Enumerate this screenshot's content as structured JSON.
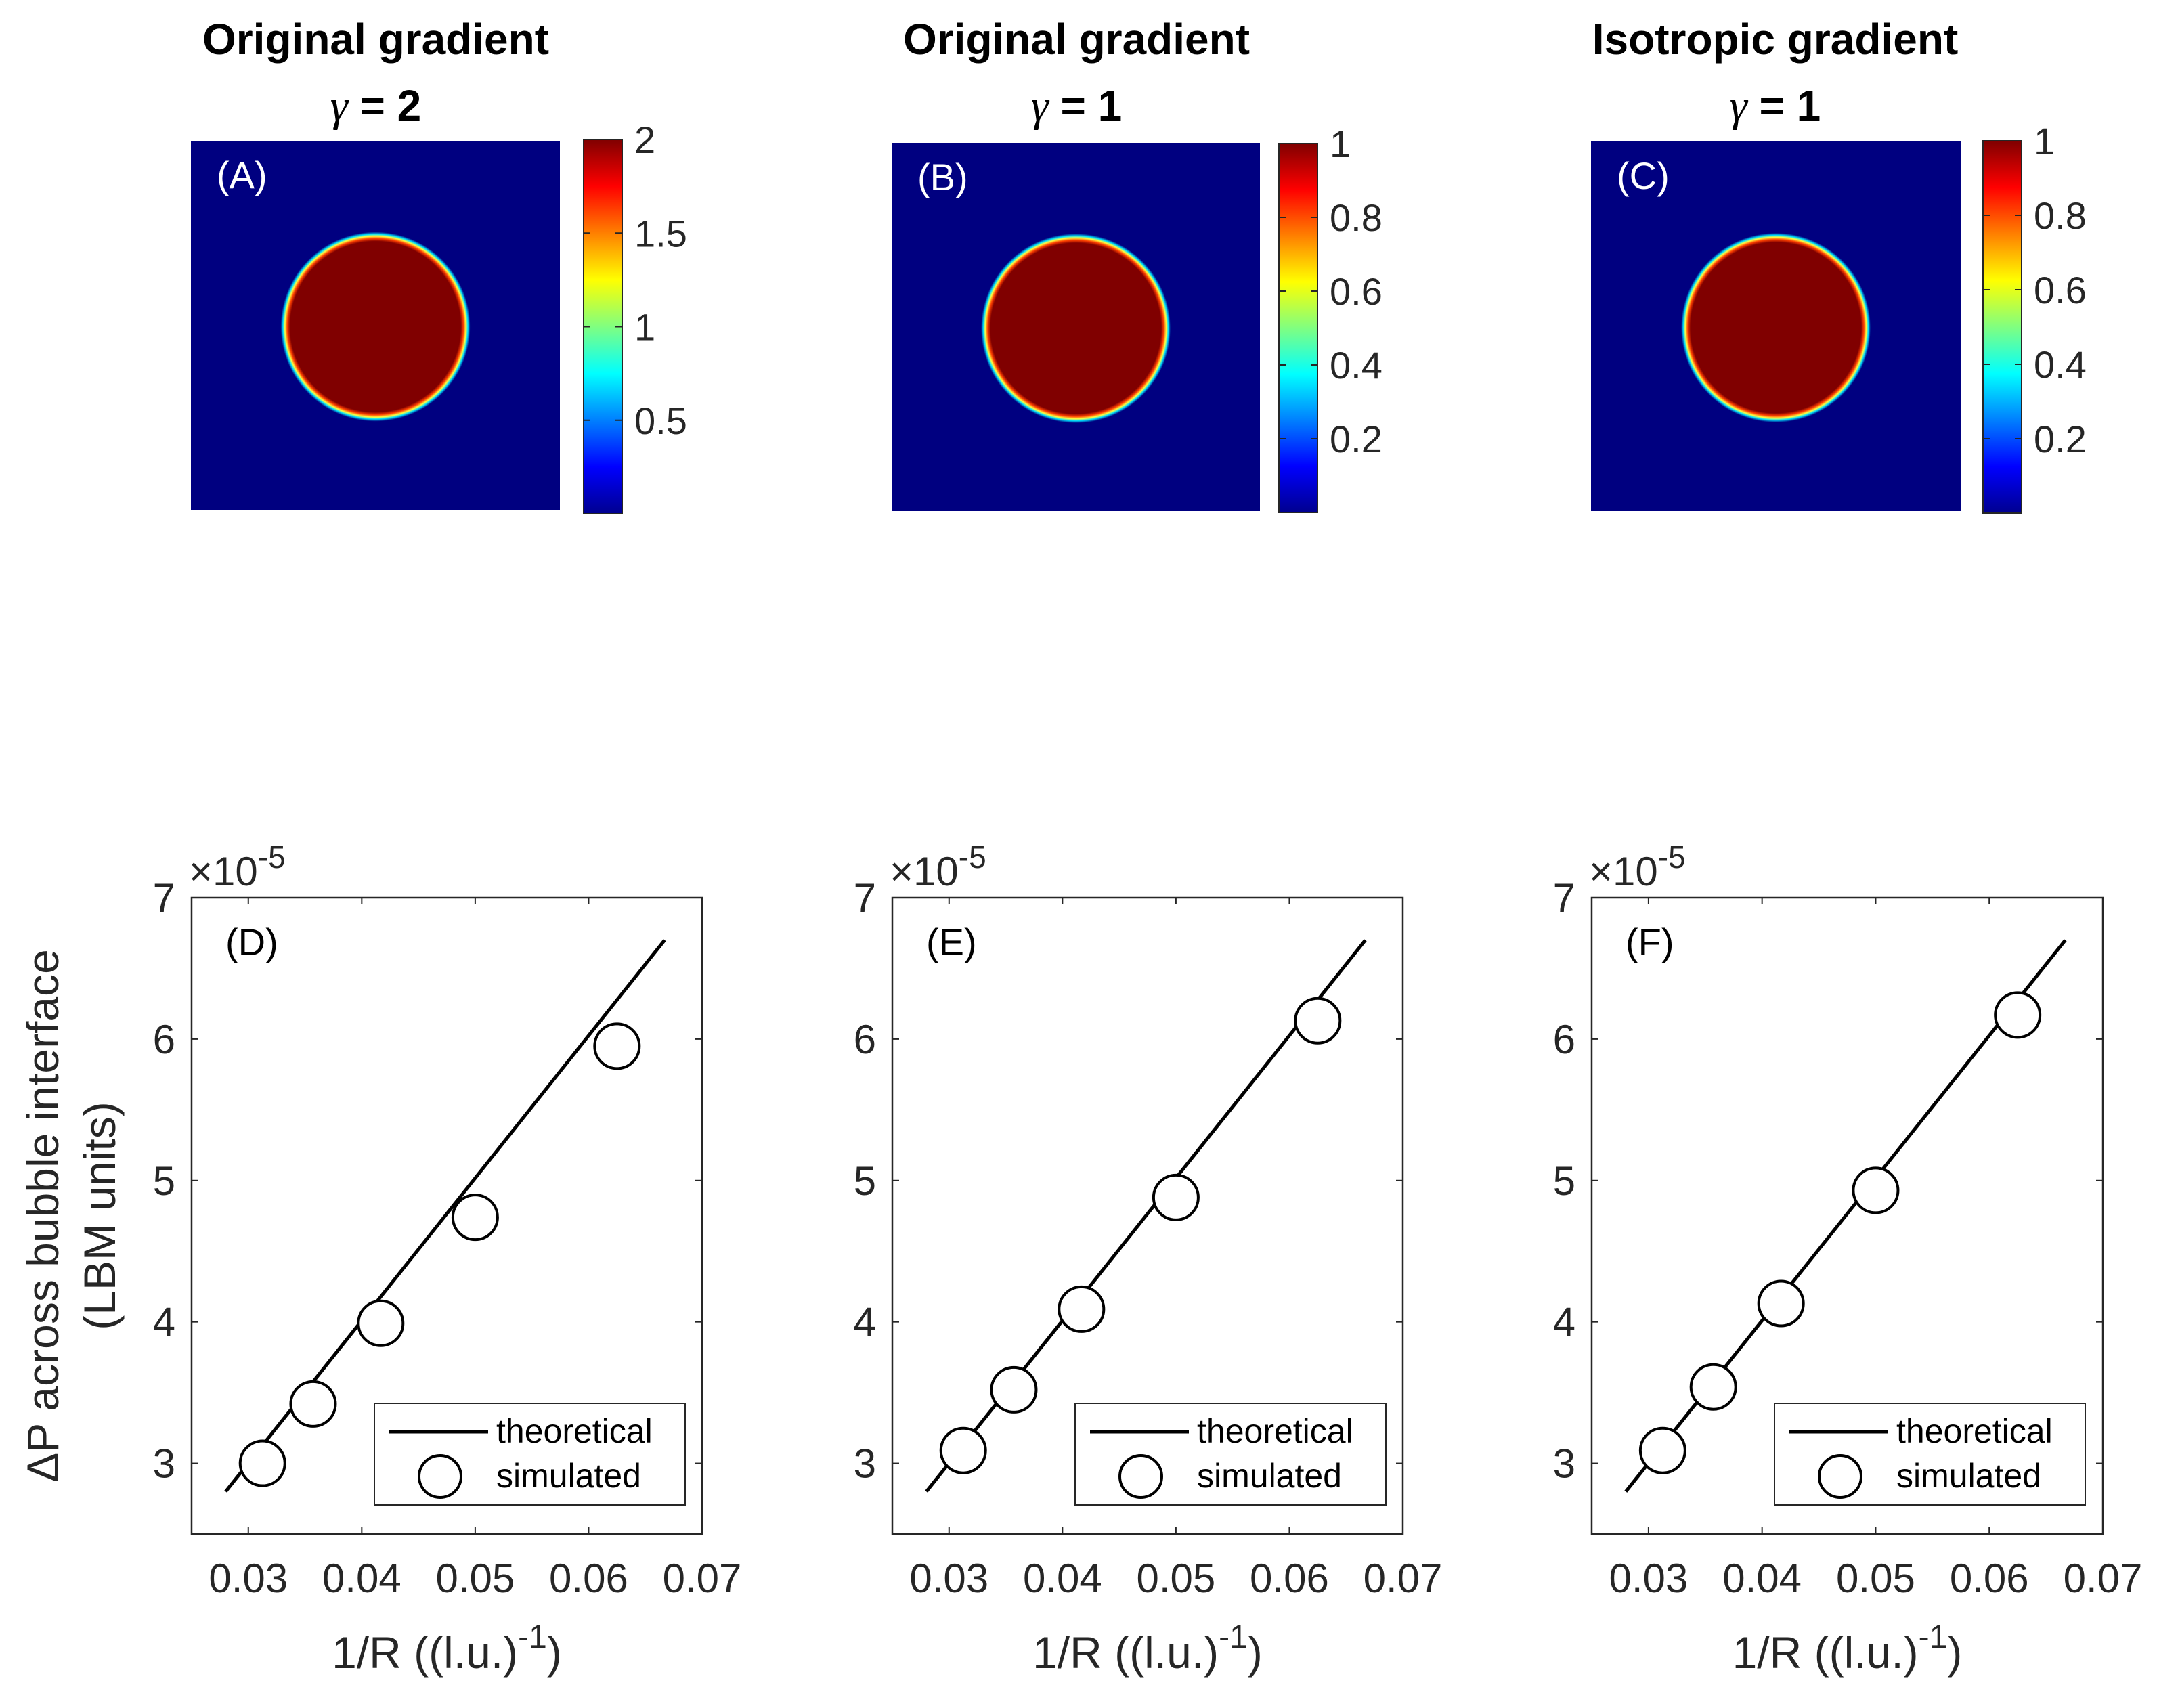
{
  "colors": {
    "background": "#000080",
    "bubble": "#800000",
    "axis": "#262626",
    "line": "#000000",
    "marker_face": "#ffffff"
  },
  "maps": [
    {
      "id": "A",
      "title": "Original gradient",
      "gamma_symbol": "γ",
      "gamma_text": " = 2",
      "panel_label": "(A)",
      "colorbar": {
        "min": 0,
        "max": 2,
        "ticks": [
          "0.5",
          "1",
          "1.5",
          "2"
        ],
        "tick_values": [
          0.5,
          1,
          1.5,
          2
        ]
      }
    },
    {
      "id": "B",
      "title": "Original gradient",
      "gamma_symbol": "γ",
      "gamma_text": " = 1",
      "panel_label": "(B)",
      "colorbar": {
        "min": 0,
        "max": 1,
        "ticks": [
          "0.2",
          "0.4",
          "0.6",
          "0.8",
          "1"
        ],
        "tick_values": [
          0.2,
          0.4,
          0.6,
          0.8,
          1
        ]
      }
    },
    {
      "id": "C",
      "title": "Isotropic gradient",
      "gamma_symbol": "γ",
      "gamma_text": " = 1",
      "panel_label": "(C)",
      "colorbar": {
        "min": 0,
        "max": 1,
        "ticks": [
          "0.2",
          "0.4",
          "0.6",
          "0.8",
          "1"
        ],
        "tick_values": [
          0.2,
          0.4,
          0.6,
          0.8,
          1
        ]
      }
    }
  ],
  "chart_data": [
    {
      "type": "scatter",
      "panel_label": "(D)",
      "xlim": [
        0.025,
        0.07
      ],
      "ylim": [
        2.5,
        7
      ],
      "xticks": [
        "0.03",
        "0.04",
        "0.05",
        "0.06",
        "0.07"
      ],
      "xtick_values": [
        0.03,
        0.04,
        0.05,
        0.06,
        0.07
      ],
      "yticks": [
        "3",
        "4",
        "5",
        "6",
        "7"
      ],
      "ytick_values": [
        3,
        4,
        5,
        6,
        7
      ],
      "exponent_prefix": "×10",
      "exponent": "-5",
      "ylabel_line1": "ΔP across bubble interface",
      "ylabel_line2": "(LBM units)",
      "xlabel_main": "1/R ((l.u.)",
      "xlabel_sup": "-1",
      "xlabel_close": ")",
      "series": [
        {
          "name": "theoretical",
          "kind": "line",
          "x": [
            0.028,
            0.0667
          ],
          "y": [
            2.8,
            6.7
          ]
        },
        {
          "name": "simulated",
          "kind": "marker",
          "x": [
            0.03125,
            0.03571,
            0.04167,
            0.05,
            0.0625
          ],
          "y": [
            3.0,
            3.42,
            3.99,
            4.74,
            5.95
          ]
        }
      ],
      "legend": {
        "position": "bottom-right",
        "entries": [
          "theoretical",
          "simulated"
        ]
      }
    },
    {
      "type": "scatter",
      "panel_label": "(E)",
      "xlim": [
        0.025,
        0.07
      ],
      "ylim": [
        2.5,
        7
      ],
      "xticks": [
        "0.03",
        "0.04",
        "0.05",
        "0.06",
        "0.07"
      ],
      "xtick_values": [
        0.03,
        0.04,
        0.05,
        0.06,
        0.07
      ],
      "yticks": [
        "3",
        "4",
        "5",
        "6",
        "7"
      ],
      "ytick_values": [
        3,
        4,
        5,
        6,
        7
      ],
      "exponent_prefix": "×10",
      "exponent": "-5",
      "xlabel_main": "1/R ((l.u.)",
      "xlabel_sup": "-1",
      "xlabel_close": ")",
      "series": [
        {
          "name": "theoretical",
          "kind": "line",
          "x": [
            0.028,
            0.0667
          ],
          "y": [
            2.8,
            6.7
          ]
        },
        {
          "name": "simulated",
          "kind": "marker",
          "x": [
            0.03125,
            0.03571,
            0.04167,
            0.05,
            0.0625
          ],
          "y": [
            3.09,
            3.52,
            4.09,
            4.88,
            6.13
          ]
        }
      ],
      "legend": {
        "position": "bottom-right",
        "entries": [
          "theoretical",
          "simulated"
        ]
      }
    },
    {
      "type": "scatter",
      "panel_label": "(F)",
      "xlim": [
        0.025,
        0.07
      ],
      "ylim": [
        2.5,
        7
      ],
      "xticks": [
        "0.03",
        "0.04",
        "0.05",
        "0.06",
        "0.07"
      ],
      "xtick_values": [
        0.03,
        0.04,
        0.05,
        0.06,
        0.07
      ],
      "yticks": [
        "3",
        "4",
        "5",
        "6",
        "7"
      ],
      "ytick_values": [
        3,
        4,
        5,
        6,
        7
      ],
      "exponent_prefix": "×10",
      "exponent": "-5",
      "xlabel_main": "1/R ((l.u.)",
      "xlabel_sup": "-1",
      "xlabel_close": ")",
      "series": [
        {
          "name": "theoretical",
          "kind": "line",
          "x": [
            0.028,
            0.0667
          ],
          "y": [
            2.8,
            6.7
          ]
        },
        {
          "name": "simulated",
          "kind": "marker",
          "x": [
            0.03125,
            0.03571,
            0.04167,
            0.05,
            0.0625
          ],
          "y": [
            3.09,
            3.54,
            4.13,
            4.93,
            6.17
          ]
        }
      ],
      "legend": {
        "position": "bottom-right",
        "entries": [
          "theoretical",
          "simulated"
        ]
      }
    }
  ]
}
